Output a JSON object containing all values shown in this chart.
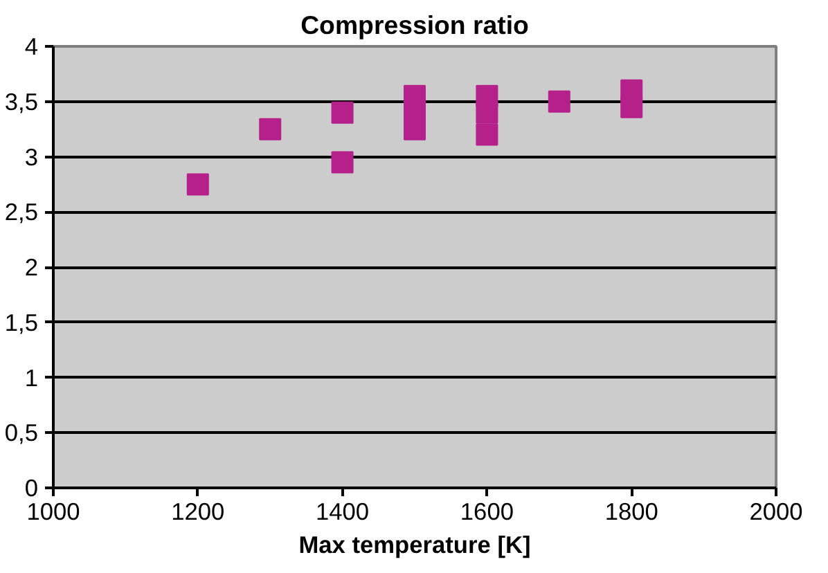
{
  "chart_data": {
    "type": "scatter",
    "title": "Compression ratio",
    "xlabel": "Max temperature [K]",
    "x": [
      1200,
      1300,
      1400,
      1400,
      1500,
      1500,
      1500,
      1600,
      1600,
      1600,
      1700,
      1800,
      1800
    ],
    "series": [
      {
        "color": "#b5208b",
        "values": [
          2.75,
          3.25,
          3.4,
          2.95,
          3.25,
          3.4,
          3.55,
          3.2,
          3.4,
          3.55,
          3.5,
          3.45,
          3.6
        ]
      }
    ],
    "marker": "square",
    "grid": "y",
    "xlim": [
      1000,
      2000
    ],
    "xticks": [
      1000,
      1200,
      1400,
      1600,
      1800,
      2000
    ],
    "ylim": [
      0,
      4
    ],
    "yticks": [
      0,
      {
        "value": 0.5,
        "label": "0,5"
      },
      1,
      {
        "value": 1.5,
        "label": "1,5"
      },
      2,
      {
        "value": 2.5,
        "label": "2,5"
      },
      3,
      {
        "value": 3.5,
        "label": "3,5"
      },
      4
    ]
  }
}
